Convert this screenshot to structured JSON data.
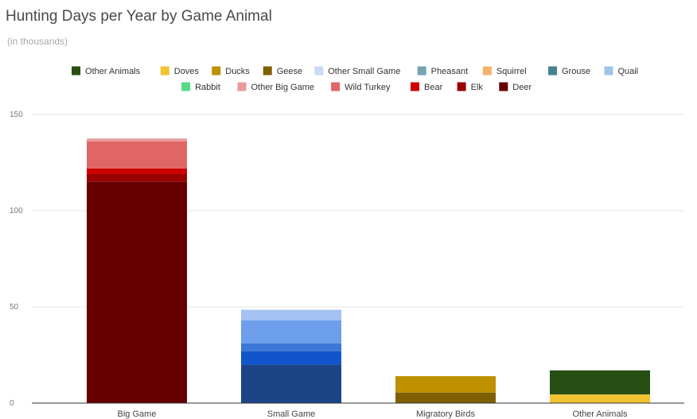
{
  "chart_data": {
    "type": "bar",
    "stacked": true,
    "title": "Hunting Days per Year by Game Animal",
    "subtitle": "(in thousands)",
    "xlabel": "",
    "ylabel": "",
    "ylim": [
      0,
      150
    ],
    "yticks": [
      0,
      50,
      100,
      150
    ],
    "grid": true,
    "legend_position": "top",
    "categories": [
      "Big Game",
      "Small Game",
      "Migratory Birds",
      "Other Animals"
    ],
    "series": [
      {
        "name": "Other Animals",
        "color": "#274e13",
        "values": [
          0,
          0,
          0,
          12.5
        ]
      },
      {
        "name": "Doves",
        "color": "#f1c232",
        "values": [
          0,
          0,
          0,
          4.5
        ]
      },
      {
        "name": "Ducks",
        "color": "#bf9000",
        "values": [
          0,
          0,
          8.5,
          0
        ]
      },
      {
        "name": "Geese",
        "color": "#7f6000",
        "values": [
          0,
          0,
          5.5,
          0
        ]
      },
      {
        "name": "Other Small Game",
        "color": "#c9daf8",
        "values": [
          0,
          0,
          0,
          0
        ]
      },
      {
        "name": "Pheasant",
        "color": "#76a5af",
        "values": [
          0,
          0,
          0,
          0
        ]
      },
      {
        "name": "Squirrel",
        "color": "#f6b26b",
        "values": [
          0,
          0,
          0,
          0
        ]
      },
      {
        "name": "Grouse",
        "color": "#45818e",
        "values": [
          0,
          0,
          0,
          0
        ]
      },
      {
        "name": "Quail",
        "color": "#9fc5e8",
        "values": [
          0,
          0,
          0,
          0
        ]
      },
      {
        "name": "Rabbit",
        "color": "#57d98a",
        "values": [
          0,
          0,
          0,
          0
        ]
      },
      {
        "name": "Other Big Game",
        "color": "#ea9999",
        "values": [
          1.5,
          0,
          0,
          0
        ]
      },
      {
        "name": "Wild Turkey",
        "color": "#e06666",
        "values": [
          14,
          0,
          0,
          0
        ]
      },
      {
        "name": "Bear",
        "color": "#cc0000",
        "values": [
          3,
          0,
          0,
          0
        ]
      },
      {
        "name": "Elk",
        "color": "#990000",
        "values": [
          4,
          0,
          0,
          0
        ]
      },
      {
        "name": "Deer",
        "color": "#660000",
        "values": [
          115,
          0,
          0,
          0
        ]
      }
    ],
    "small_game_segments": [
      {
        "color": "#1c4587",
        "value": 20
      },
      {
        "color": "#1155cc",
        "value": 7
      },
      {
        "color": "#3c78d8",
        "value": 4
      },
      {
        "color": "#6d9eeb",
        "value": 12
      },
      {
        "color": "#a4c2f4",
        "value": 5.5
      }
    ]
  }
}
